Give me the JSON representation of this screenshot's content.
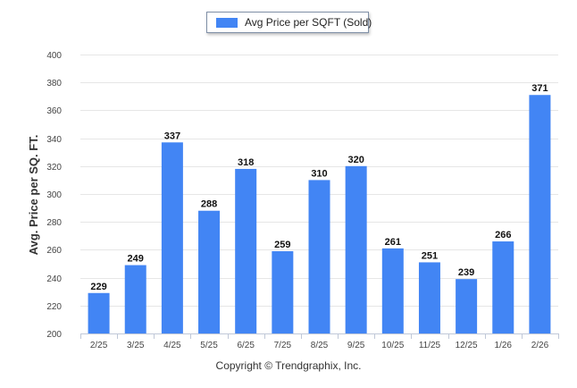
{
  "legend": {
    "label": "Avg Price per SQFT (Sold)"
  },
  "copyright": "Copyright © Trendgraphix, Inc.",
  "chart_data": {
    "type": "bar",
    "ylabel": "Avg. Price per SQ. FT.",
    "xlabel": "",
    "ylim": [
      200,
      400
    ],
    "yticks": [
      200,
      220,
      240,
      260,
      280,
      300,
      320,
      340,
      360,
      380,
      400
    ],
    "grid": true,
    "legend_position": "top-center",
    "bar_color": "#4285f4",
    "categories": [
      "2/25",
      "3/25",
      "4/25",
      "5/25",
      "6/25",
      "7/25",
      "8/25",
      "9/25",
      "10/25",
      "11/25",
      "12/25",
      "1/26",
      "2/26"
    ],
    "series": [
      {
        "name": "Avg Price per SQFT (Sold)",
        "values": [
          229,
          249,
          337,
          288,
          318,
          259,
          310,
          320,
          261,
          251,
          239,
          266,
          371
        ]
      }
    ]
  }
}
